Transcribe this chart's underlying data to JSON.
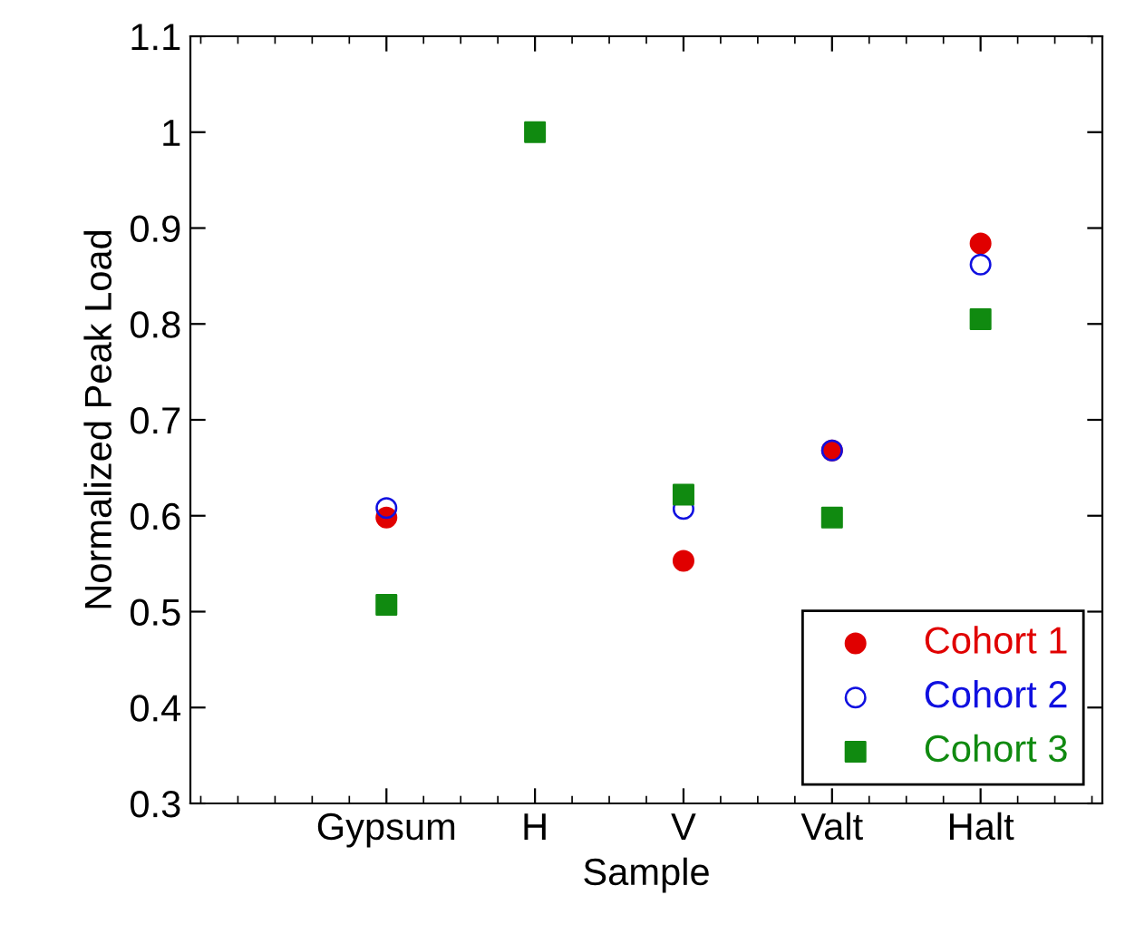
{
  "chart_data": {
    "type": "scatter",
    "xlabel": "Sample",
    "ylabel": "Normalized Peak Load",
    "categories": [
      "Gypsum",
      "H",
      "V",
      "Valt",
      "Halt"
    ],
    "series": [
      {
        "name": "Cohort 1",
        "color": "#e00000",
        "marker": "circle",
        "values": [
          0.598,
          null,
          0.553,
          0.668,
          0.884
        ]
      },
      {
        "name": "Cohort 2",
        "color": "#1010e0",
        "marker": "circle",
        "values": [
          0.608,
          null,
          0.607,
          0.668,
          0.862
        ]
      },
      {
        "name": "Cohort 3",
        "color": "#108a10",
        "marker": "square",
        "values": [
          0.507,
          1.0,
          0.622,
          0.598,
          0.805
        ]
      }
    ],
    "ylim": [
      0.3,
      1.1
    ],
    "yticks": [
      0.3,
      0.4,
      0.5,
      0.6,
      0.7,
      0.8,
      0.9,
      1,
      1.1
    ],
    "grid": false,
    "legend": "bottom right"
  }
}
